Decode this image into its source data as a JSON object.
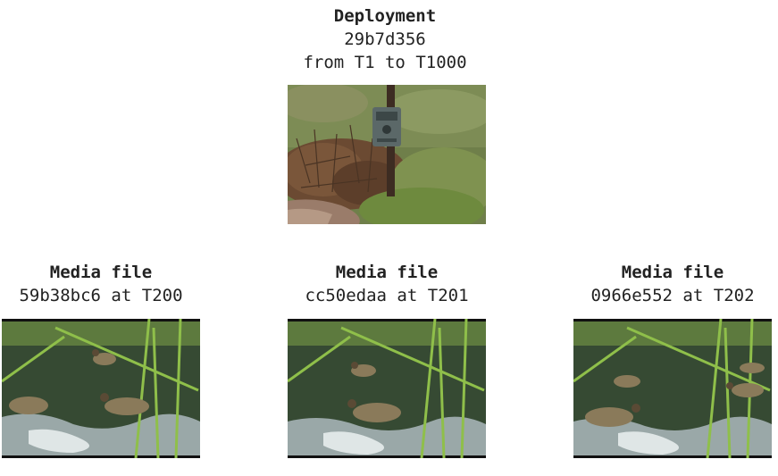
{
  "deployment": {
    "title": "Deployment",
    "id": "29b7d356",
    "range": "from T1 to T1000",
    "image_icon": "camera-trap-photo"
  },
  "media_files": [
    {
      "title": "Media file",
      "caption": "59b38bc6 at T200",
      "image_icon": "ducks-in-water-photo"
    },
    {
      "title": "Media file",
      "caption": "cc50edaa at T201",
      "image_icon": "ducks-in-water-photo"
    },
    {
      "title": "Media file",
      "caption": "0966e552 at T202",
      "image_icon": "ducks-in-water-photo"
    }
  ]
}
